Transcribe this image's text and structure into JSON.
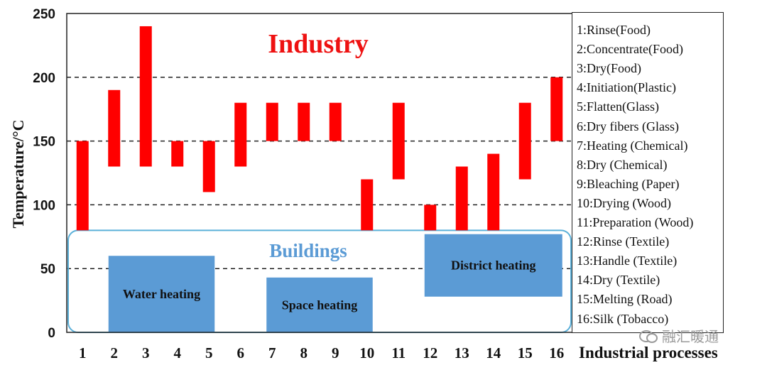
{
  "chart_data": {
    "type": "bar",
    "subtype": "floating-range",
    "xlabel": "Industrial processes",
    "ylabel": "Temperature/°C",
    "ylim": [
      0,
      250
    ],
    "yticks": [
      0,
      50,
      100,
      150,
      200,
      250
    ],
    "grid": {
      "style": "dashed",
      "lines": [
        50,
        100,
        150,
        200
      ]
    },
    "categories": [
      "1",
      "2",
      "3",
      "4",
      "5",
      "6",
      "7",
      "8",
      "9",
      "10",
      "11",
      "12",
      "13",
      "14",
      "15",
      "16"
    ],
    "ranges": [
      [
        80,
        150
      ],
      [
        130,
        190
      ],
      [
        130,
        240
      ],
      [
        130,
        150
      ],
      [
        110,
        150
      ],
      [
        130,
        180
      ],
      [
        150,
        180
      ],
      [
        150,
        180
      ],
      [
        150,
        180
      ],
      [
        80,
        120
      ],
      [
        120,
        180
      ],
      [
        80,
        100
      ],
      [
        80,
        130
      ],
      [
        80,
        140
      ],
      [
        120,
        180
      ],
      [
        150,
        200
      ]
    ],
    "bar_color": "#ff0000",
    "annotations": {
      "industry": "Industry",
      "buildings": "Buildings"
    },
    "regions": [
      {
        "label": "Water heating",
        "x_start": 2,
        "x_end": 5,
        "y_min": 0,
        "y_max": 60
      },
      {
        "label": "Space heating",
        "x_start": 7,
        "x_end": 10,
        "y_min": 0,
        "y_max": 43
      },
      {
        "label": "District heating",
        "x_start": 12,
        "x_end": 16,
        "y_min": 28,
        "y_max": 77
      }
    ],
    "buildings_region": {
      "y_min": 0,
      "y_max": 80
    },
    "region_color": "#5b9bd5",
    "legend": {
      "placement": "right",
      "entries": [
        "1:Rinse(Food)",
        "2:Concentrate(Food)",
        "3:Dry(Food)",
        "4:Initiation(Plastic)",
        "5:Flatten(Glass)",
        "6:Dry fibers (Glass)",
        "7:Heating (Chemical)",
        "8:Dry (Chemical)",
        "9:Bleaching (Paper)",
        "10:Drying (Wood)",
        "11:Preparation (Wood)",
        "12:Rinse (Textile)",
        "13:Handle (Textile)",
        "14:Dry (Textile)",
        "15:Melting (Road)",
        "16:Silk (Tobacco)"
      ]
    }
  },
  "watermark": {
    "text": "融汇暖通",
    "icon": "wechat-icon"
  }
}
